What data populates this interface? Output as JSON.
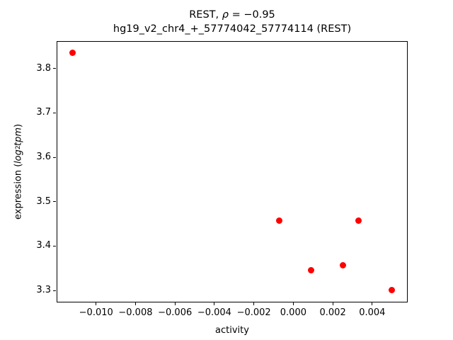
{
  "title": {
    "line1_prefix": "REST, ",
    "line1_rho": "ρ",
    "line1_suffix": " = −0.95",
    "line2": "hg19_v2_chr4_+_57774042_57774114 (REST)"
  },
  "axes": {
    "xlabel": "activity",
    "ylabel_prefix": "expression (",
    "ylabel_log": "log",
    "ylabel_sub": "2",
    "ylabel_tpm": "tpm",
    "ylabel_suffix": ")"
  },
  "chart_data": {
    "type": "scatter",
    "title": "REST, ρ = −0.95 / hg19_v2_chr4_+_57774042_57774114 (REST)",
    "xlabel": "activity",
    "ylabel": "expression (log2tpm)",
    "marker_color": "#ff0000",
    "xlim": [
      -0.012,
      0.0058
    ],
    "ylim": [
      3.273,
      3.862
    ],
    "xtick_values": [
      -0.01,
      -0.008,
      -0.006,
      -0.004,
      -0.002,
      0.0,
      0.002,
      0.004
    ],
    "xtick_labels": [
      "−0.010",
      "−0.008",
      "−0.006",
      "−0.004",
      "−0.002",
      "0.000",
      "0.002",
      "0.004"
    ],
    "ytick_values": [
      3.3,
      3.4,
      3.5,
      3.6,
      3.7,
      3.8
    ],
    "ytick_labels": [
      "3.3",
      "3.4",
      "3.5",
      "3.6",
      "3.7",
      "3.8"
    ],
    "points": [
      {
        "x": -0.0112,
        "y": 3.835
      },
      {
        "x": -0.0007,
        "y": 3.458
      },
      {
        "x": 0.0009,
        "y": 3.345
      },
      {
        "x": 0.0025,
        "y": 3.357
      },
      {
        "x": 0.0033,
        "y": 3.458
      },
      {
        "x": 0.005,
        "y": 3.301
      }
    ]
  }
}
